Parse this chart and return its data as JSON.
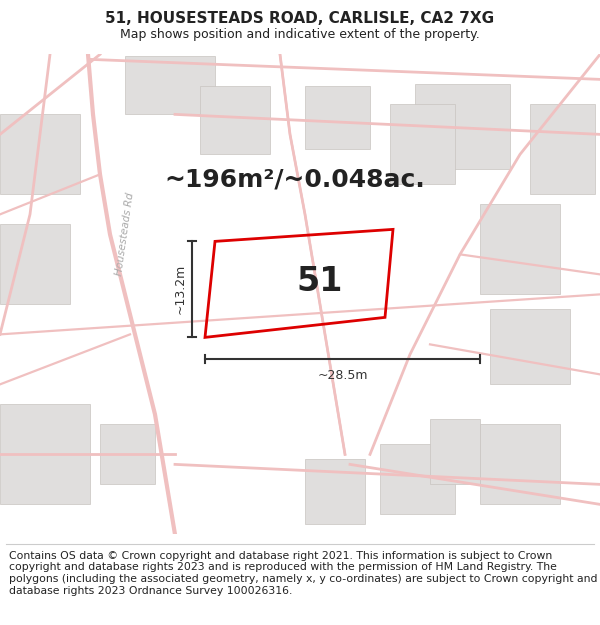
{
  "title": "51, HOUSESTEADS ROAD, CARLISLE, CA2 7XG",
  "subtitle": "Map shows position and indicative extent of the property.",
  "area_text": "~196m²/~0.048ac.",
  "property_number": "51",
  "width_label": "~28.5m",
  "height_label": "~13.2m",
  "footer_text": "Contains OS data © Crown copyright and database right 2021. This information is subject to Crown copyright and database rights 2023 and is reproduced with the permission of HM Land Registry. The polygons (including the associated geometry, namely x, y co-ordinates) are subject to Crown copyright and database rights 2023 Ordnance Survey 100026316.",
  "map_bg": "#ffffff",
  "road_color": "#f0c0c0",
  "property_outline_color": "#dd0000",
  "building_fill": "#e0dedd",
  "building_edge": "#c8c4c0",
  "title_fontsize": 11,
  "subtitle_fontsize": 9,
  "area_fontsize": 18,
  "number_fontsize": 24,
  "label_fontsize": 9,
  "footer_fontsize": 7.8,
  "road_label": "Housesteads Rd",
  "title_color": "#222222",
  "dim_color": "#333333"
}
